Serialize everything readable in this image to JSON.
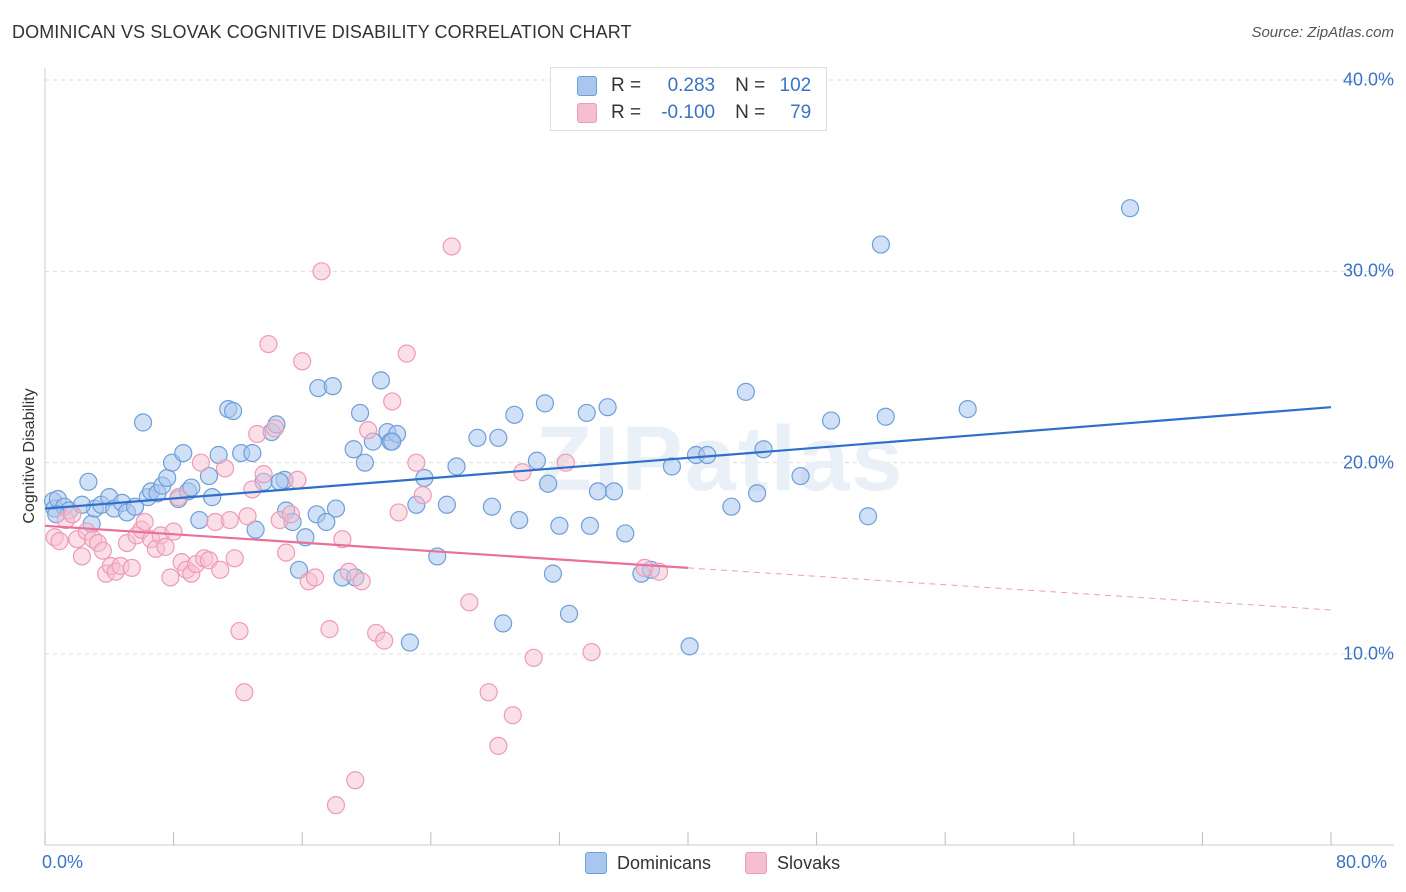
{
  "title": "DOMINICAN VS SLOVAK COGNITIVE DISABILITY CORRELATION CHART",
  "source": "Source: ZipAtlas.com",
  "watermark": "ZIPatlas",
  "legend": {
    "rows": [
      {
        "r_label": "R =",
        "r_value": "0.283",
        "n_label": "N =",
        "n_value": "102"
      },
      {
        "r_label": "R =",
        "r_value": "-0.100",
        "n_label": "N =",
        "n_value": "79"
      }
    ]
  },
  "colors": {
    "dominicans_fill": "#a9c7ee",
    "dominicans_stroke": "#6f9fd8",
    "dominicans_line": "#2f6fcc",
    "slovaks_fill": "#f6bfd0",
    "slovaks_stroke": "#ef9ab6",
    "slovaks_line": "#e8709a",
    "tick_label": "#3b73c4"
  },
  "chart_data": {
    "type": "scatter",
    "title": "DOMINICAN VS SLOVAK COGNITIVE DISABILITY CORRELATION CHART",
    "xlabel": "",
    "ylabel": "Cognitive Disability",
    "xlim": [
      0,
      80
    ],
    "ylim": [
      0,
      42
    ],
    "x_tick_labels": [
      "0.0%",
      "80.0%"
    ],
    "y_ticks": [
      10,
      20,
      30,
      40
    ],
    "y_tick_labels": [
      "10.0%",
      "20.0%",
      "30.0%",
      "40.0%"
    ],
    "grid": true,
    "legend_position": "top-center",
    "series": [
      {
        "name": "Dominicans",
        "trend": {
          "x": [
            0,
            80
          ],
          "y": [
            17.6,
            22.9
          ],
          "style": "solid"
        },
        "points": [
          [
            0.5,
            18.0
          ],
          [
            0.6,
            17.6
          ],
          [
            0.8,
            18.1
          ],
          [
            1.2,
            17.7
          ],
          [
            1.5,
            17.5
          ],
          [
            2.7,
            19.0
          ],
          [
            2.9,
            16.8
          ],
          [
            3.1,
            17.6
          ],
          [
            3.5,
            17.8
          ],
          [
            4.0,
            18.2
          ],
          [
            4.3,
            17.6
          ],
          [
            4.8,
            17.9
          ],
          [
            5.1,
            17.4
          ],
          [
            5.6,
            17.7
          ],
          [
            6.1,
            22.1
          ],
          [
            6.4,
            18.2
          ],
          [
            6.6,
            18.5
          ],
          [
            7.0,
            18.4
          ],
          [
            7.3,
            18.8
          ],
          [
            7.6,
            19.2
          ],
          [
            7.9,
            20.0
          ],
          [
            8.3,
            18.1
          ],
          [
            8.6,
            20.5
          ],
          [
            8.9,
            18.5
          ],
          [
            9.6,
            17.0
          ],
          [
            10.2,
            19.3
          ],
          [
            10.4,
            18.2
          ],
          [
            10.8,
            20.4
          ],
          [
            11.4,
            22.8
          ],
          [
            11.7,
            22.7
          ],
          [
            12.2,
            20.5
          ],
          [
            12.9,
            20.5
          ],
          [
            13.1,
            16.5
          ],
          [
            13.6,
            19.0
          ],
          [
            14.1,
            21.6
          ],
          [
            14.4,
            22.0
          ],
          [
            14.9,
            19.1
          ],
          [
            15.0,
            17.5
          ],
          [
            15.4,
            16.9
          ],
          [
            15.8,
            14.4
          ],
          [
            16.2,
            16.1
          ],
          [
            16.9,
            17.3
          ],
          [
            17.0,
            23.9
          ],
          [
            17.5,
            16.9
          ],
          [
            17.9,
            24.0
          ],
          [
            18.1,
            17.6
          ],
          [
            18.5,
            14.0
          ],
          [
            19.2,
            20.7
          ],
          [
            19.3,
            14.0
          ],
          [
            19.6,
            22.6
          ],
          [
            19.9,
            20.0
          ],
          [
            20.4,
            21.1
          ],
          [
            20.9,
            24.3
          ],
          [
            21.3,
            21.6
          ],
          [
            21.5,
            21.1
          ],
          [
            21.9,
            21.5
          ],
          [
            22.7,
            10.6
          ],
          [
            23.1,
            17.8
          ],
          [
            23.6,
            19.2
          ],
          [
            24.4,
            15.1
          ],
          [
            25.0,
            17.8
          ],
          [
            25.6,
            19.8
          ],
          [
            26.9,
            21.3
          ],
          [
            27.8,
            17.7
          ],
          [
            28.2,
            21.3
          ],
          [
            28.5,
            11.6
          ],
          [
            29.2,
            22.5
          ],
          [
            29.5,
            17.0
          ],
          [
            30.6,
            20.1
          ],
          [
            31.1,
            23.1
          ],
          [
            31.3,
            18.9
          ],
          [
            31.6,
            14.2
          ],
          [
            32.0,
            16.7
          ],
          [
            32.6,
            12.1
          ],
          [
            33.7,
            22.6
          ],
          [
            33.9,
            16.7
          ],
          [
            34.4,
            18.5
          ],
          [
            35.0,
            22.9
          ],
          [
            35.4,
            18.5
          ],
          [
            36.1,
            16.3
          ],
          [
            37.1,
            14.2
          ],
          [
            37.7,
            14.4
          ],
          [
            39.0,
            19.8
          ],
          [
            40.1,
            10.4
          ],
          [
            40.5,
            20.4
          ],
          [
            41.2,
            20.4
          ],
          [
            42.7,
            17.7
          ],
          [
            43.6,
            23.7
          ],
          [
            44.3,
            18.4
          ],
          [
            44.7,
            20.7
          ],
          [
            47.0,
            19.3
          ],
          [
            48.9,
            22.2
          ],
          [
            51.2,
            17.2
          ],
          [
            52.0,
            31.4
          ],
          [
            52.3,
            22.4
          ],
          [
            57.4,
            22.8
          ],
          [
            67.5,
            33.3
          ],
          [
            0.7,
            17.3
          ],
          [
            2.3,
            17.8
          ],
          [
            9.1,
            18.7
          ],
          [
            14.6,
            19.0
          ],
          [
            21.6,
            21.1
          ]
        ]
      },
      {
        "name": "Slovaks",
        "trend": {
          "x": [
            0,
            40
          ],
          "y": [
            16.7,
            14.5
          ],
          "style": "solid",
          "extended_x": [
            40,
            80
          ],
          "extended_y": [
            14.5,
            12.3
          ],
          "extended_style": "dashed"
        },
        "points": [
          [
            0.6,
            16.1
          ],
          [
            0.9,
            15.9
          ],
          [
            1.3,
            17.0
          ],
          [
            1.7,
            17.3
          ],
          [
            2.0,
            16.0
          ],
          [
            2.3,
            15.1
          ],
          [
            2.6,
            16.4
          ],
          [
            3.0,
            16.0
          ],
          [
            3.3,
            15.8
          ],
          [
            3.6,
            15.4
          ],
          [
            3.8,
            14.2
          ],
          [
            4.1,
            14.6
          ],
          [
            4.4,
            14.3
          ],
          [
            4.7,
            14.6
          ],
          [
            5.1,
            15.8
          ],
          [
            5.4,
            14.5
          ],
          [
            5.7,
            16.2
          ],
          [
            6.0,
            16.5
          ],
          [
            6.2,
            16.9
          ],
          [
            6.6,
            16.0
          ],
          [
            6.9,
            15.5
          ],
          [
            7.2,
            16.2
          ],
          [
            7.5,
            15.6
          ],
          [
            7.8,
            14.0
          ],
          [
            8.0,
            16.4
          ],
          [
            8.3,
            18.2
          ],
          [
            8.5,
            14.8
          ],
          [
            8.8,
            14.4
          ],
          [
            9.1,
            14.2
          ],
          [
            9.4,
            14.7
          ],
          [
            9.7,
            20.0
          ],
          [
            9.9,
            15.0
          ],
          [
            10.2,
            14.9
          ],
          [
            10.6,
            16.9
          ],
          [
            10.9,
            14.4
          ],
          [
            11.2,
            19.7
          ],
          [
            11.5,
            17.0
          ],
          [
            11.8,
            15.0
          ],
          [
            12.1,
            11.2
          ],
          [
            12.4,
            8.0
          ],
          [
            12.6,
            17.2
          ],
          [
            12.9,
            18.6
          ],
          [
            13.2,
            21.5
          ],
          [
            13.6,
            19.4
          ],
          [
            13.9,
            26.2
          ],
          [
            14.3,
            21.8
          ],
          [
            14.6,
            17.0
          ],
          [
            15.0,
            15.3
          ],
          [
            15.3,
            17.3
          ],
          [
            15.7,
            19.1
          ],
          [
            16.0,
            25.3
          ],
          [
            16.4,
            13.8
          ],
          [
            16.8,
            14.0
          ],
          [
            17.2,
            30.0
          ],
          [
            17.7,
            11.3
          ],
          [
            18.1,
            2.1
          ],
          [
            18.5,
            16.0
          ],
          [
            18.9,
            14.3
          ],
          [
            19.3,
            3.4
          ],
          [
            19.7,
            13.8
          ],
          [
            20.1,
            21.7
          ],
          [
            20.6,
            11.1
          ],
          [
            21.1,
            10.7
          ],
          [
            21.6,
            23.2
          ],
          [
            22.0,
            17.4
          ],
          [
            22.5,
            25.7
          ],
          [
            23.1,
            20.0
          ],
          [
            23.5,
            18.3
          ],
          [
            25.3,
            31.3
          ],
          [
            26.4,
            12.7
          ],
          [
            27.6,
            8.0
          ],
          [
            28.2,
            5.2
          ],
          [
            29.1,
            6.8
          ],
          [
            29.7,
            19.5
          ],
          [
            30.4,
            9.8
          ],
          [
            32.4,
            20.0
          ],
          [
            34.0,
            10.1
          ],
          [
            37.3,
            14.5
          ],
          [
            38.2,
            14.3
          ]
        ]
      }
    ]
  },
  "bottom_legend": {
    "items": [
      "Dominicans",
      "Slovaks"
    ]
  }
}
